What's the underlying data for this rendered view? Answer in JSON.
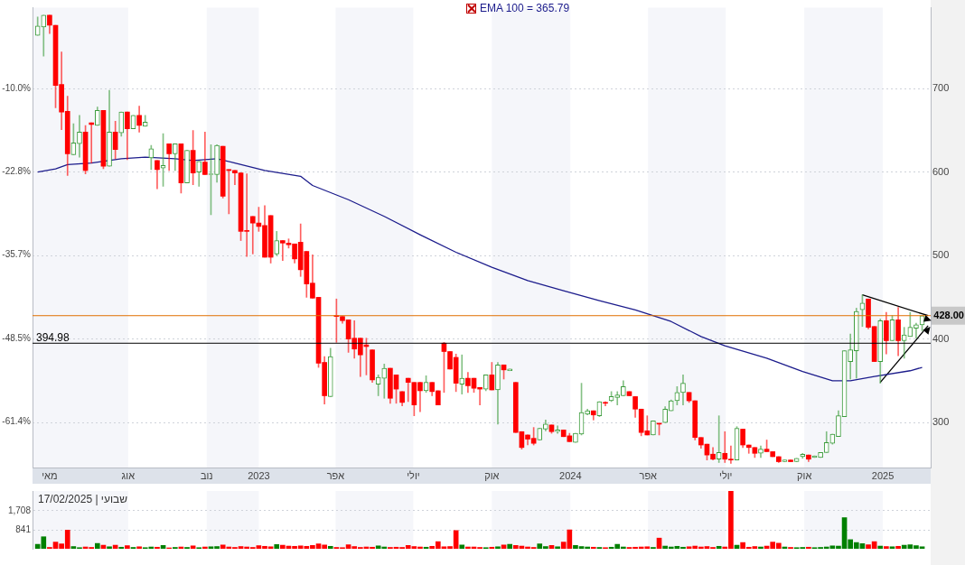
{
  "chart_data": [
    {
      "type": "candlestick",
      "x": [
        "2022-04-17",
        "2022-04-24",
        "2022-05-01",
        "2022-05-08",
        "2022-05-15",
        "2022-05-22",
        "2022-05-29",
        "2022-06-05",
        "2022-06-12",
        "2022-06-19",
        "2022-06-26",
        "2022-07-03",
        "2022-07-10",
        "2022-07-17",
        "2022-07-24",
        "2022-07-31",
        "2022-08-07",
        "2022-08-14",
        "2022-08-21",
        "2022-08-28",
        "2022-09-04",
        "2022-09-11",
        "2022-09-18",
        "2022-09-25",
        "2022-10-02",
        "2022-10-09",
        "2022-10-16",
        "2022-10-23",
        "2022-10-30",
        "2022-11-06",
        "2022-11-13",
        "2022-11-20",
        "2022-11-27",
        "2022-12-04",
        "2022-12-11",
        "2022-12-18",
        "2022-12-25",
        "2023-01-01",
        "2023-01-08",
        "2023-01-15",
        "2023-01-22",
        "2023-01-29",
        "2023-02-05",
        "2023-02-12",
        "2023-02-19",
        "2023-02-26",
        "2023-03-05",
        "2023-03-12",
        "2023-03-19",
        "2023-03-26",
        "2023-04-02",
        "2023-04-09",
        "2023-04-16",
        "2023-04-23",
        "2023-04-30",
        "2023-05-07",
        "2023-05-14",
        "2023-05-21",
        "2023-05-28",
        "2023-06-04",
        "2023-06-11",
        "2023-06-18",
        "2023-06-25",
        "2023-07-02",
        "2023-07-09",
        "2023-07-16",
        "2023-07-23",
        "2023-07-30",
        "2023-08-06",
        "2023-08-13",
        "2023-08-20",
        "2023-08-27",
        "2023-09-03",
        "2023-09-10",
        "2023-09-17",
        "2023-09-24",
        "2023-10-01",
        "2023-10-08",
        "2023-10-15",
        "2023-10-22",
        "2023-10-29",
        "2023-11-05",
        "2023-11-12",
        "2023-11-19",
        "2023-11-26",
        "2023-12-03",
        "2023-12-10",
        "2023-12-17",
        "2023-12-24",
        "2023-12-31",
        "2024-01-07",
        "2024-01-14",
        "2024-01-21",
        "2024-01-28",
        "2024-02-04",
        "2024-02-11",
        "2024-02-18",
        "2024-02-25",
        "2024-03-03",
        "2024-03-10",
        "2024-03-17",
        "2024-03-24",
        "2024-03-31",
        "2024-04-07",
        "2024-04-14",
        "2024-04-21",
        "2024-04-28",
        "2024-05-05",
        "2024-05-12",
        "2024-05-19",
        "2024-05-26",
        "2024-06-02",
        "2024-06-09",
        "2024-06-16",
        "2024-06-23",
        "2024-06-30",
        "2024-07-07",
        "2024-07-14",
        "2024-07-21",
        "2024-07-28",
        "2024-08-04",
        "2024-08-11",
        "2024-08-18",
        "2024-08-25",
        "2024-09-01",
        "2024-09-08",
        "2024-09-15",
        "2024-09-22",
        "2024-09-29",
        "2024-10-06",
        "2024-10-13",
        "2024-10-20",
        "2024-10-27",
        "2024-11-03",
        "2024-11-10",
        "2024-11-17",
        "2024-11-24",
        "2024-12-01",
        "2024-12-08",
        "2024-12-15",
        "2024-12-22",
        "2024-12-29",
        "2025-01-05",
        "2025-01-12",
        "2025-01-19",
        "2025-01-26",
        "2025-02-02",
        "2025-02-09",
        "2025-02-16"
      ],
      "ohlc": [
        [
          764,
          786,
          764,
          775
        ],
        [
          774,
          788,
          739,
          788
        ],
        [
          788,
          788,
          766,
          776
        ],
        [
          776,
          776,
          677,
          704
        ],
        [
          705,
          744,
          651,
          672
        ],
        [
          673,
          691,
          596,
          622
        ],
        [
          621,
          658,
          621,
          635
        ],
        [
          634,
          668,
          618,
          648
        ],
        [
          648,
          656,
          598,
          602
        ],
        [
          659,
          659,
          611,
          657
        ],
        [
          656,
          678,
          656,
          674
        ],
        [
          674,
          674,
          604,
          607
        ],
        [
          607,
          698,
          607,
          648
        ],
        [
          648,
          661,
          616,
          627
        ],
        [
          647,
          672,
          643,
          672
        ],
        [
          672,
          672,
          615,
          652
        ],
        [
          652,
          668,
          652,
          668
        ],
        [
          668,
          679,
          648,
          656
        ],
        [
          655,
          668,
          655,
          660
        ],
        [
          617,
          632,
          603,
          628
        ],
        [
          614,
          614,
          580,
          603
        ],
        [
          605,
          646,
          583,
          608
        ],
        [
          634,
          634,
          602,
          622
        ],
        [
          622,
          634,
          602,
          634
        ],
        [
          634,
          634,
          575,
          587
        ],
        [
          587,
          626,
          587,
          626
        ],
        [
          626,
          650,
          585,
          599
        ],
        [
          600,
          613,
          583,
          613
        ],
        [
          612,
          648,
          597,
          597
        ],
        [
          597,
          633,
          549,
          598
        ],
        [
          597,
          633,
          588,
          632
        ],
        [
          631,
          631,
          569,
          571
        ],
        [
          603,
          603,
          550,
          602
        ],
        [
          602,
          602,
          585,
          599
        ],
        [
          599,
          599,
          518,
          529
        ],
        [
          530,
          598,
          499,
          529
        ],
        [
          547,
          547,
          502,
          539
        ],
        [
          539,
          558,
          529,
          535
        ],
        [
          536,
          560,
          498,
          498
        ],
        [
          548,
          548,
          491,
          498
        ],
        [
          502,
          529,
          500,
          518
        ],
        [
          518,
          518,
          494,
          515
        ],
        [
          515,
          520,
          509,
          513
        ],
        [
          514,
          514,
          491,
          496
        ],
        [
          516,
          538,
          475,
          483
        ],
        [
          505,
          505,
          450,
          466
        ],
        [
          467,
          501,
          449,
          449
        ],
        [
          450,
          450,
          366,
          371
        ],
        [
          372,
          379,
          322,
          332
        ],
        [
          331,
          389,
          331,
          379
        ],
        [
          428,
          448,
          396,
          427
        ],
        [
          427,
          427,
          419,
          422
        ],
        [
          423,
          423,
          384,
          400
        ],
        [
          401,
          422,
          377,
          388
        ],
        [
          401,
          401,
          355,
          381
        ],
        [
          393,
          401,
          357,
          391
        ],
        [
          387,
          387,
          348,
          351
        ],
        [
          346,
          357,
          332,
          354
        ],
        [
          353,
          370,
          329,
          365
        ],
        [
          365,
          365,
          323,
          329
        ],
        [
          357,
          357,
          323,
          340
        ],
        [
          337,
          337,
          320,
          324
        ],
        [
          353,
          353,
          325,
          348
        ],
        [
          348,
          348,
          308,
          321
        ],
        [
          348,
          348,
          313,
          338
        ],
        [
          338,
          356,
          336,
          348
        ],
        [
          348,
          348,
          332,
          337
        ],
        [
          338,
          338,
          321,
          321
        ],
        [
          395,
          396,
          336,
          385
        ],
        [
          385,
          385,
          364,
          364
        ],
        [
          378,
          382,
          337,
          347
        ],
        [
          346,
          381,
          334,
          353
        ],
        [
          353,
          360,
          336,
          344
        ],
        [
          353,
          353,
          336,
          341
        ],
        [
          342,
          342,
          321,
          340
        ],
        [
          340,
          357,
          338,
          357
        ],
        [
          357,
          372,
          339,
          339
        ],
        [
          339,
          372,
          298,
          369
        ],
        [
          369,
          369,
          352,
          363
        ],
        [
          362,
          364,
          362,
          364
        ],
        [
          348,
          348,
          288,
          288
        ],
        [
          289,
          289,
          268,
          270
        ],
        [
          285,
          285,
          273,
          280
        ],
        [
          281,
          294,
          273,
          275
        ],
        [
          279,
          293,
          279,
          293
        ],
        [
          292,
          303,
          290,
          298
        ],
        [
          297,
          297,
          287,
          289
        ],
        [
          289,
          296,
          287,
          291
        ],
        [
          291,
          291,
          283,
          283
        ],
        [
          284,
          287,
          277,
          277
        ],
        [
          276,
          287,
          276,
          287
        ],
        [
          286,
          347,
          285,
          312
        ],
        [
          310,
          316,
          309,
          314
        ],
        [
          314,
          314,
          303,
          309
        ],
        [
          308,
          325,
          307,
          325
        ],
        [
          324,
          325,
          320,
          323
        ],
        [
          326,
          337,
          325,
          331
        ],
        [
          330,
          337,
          321,
          333
        ],
        [
          332,
          350,
          332,
          343
        ],
        [
          337,
          337,
          332,
          332
        ],
        [
          331,
          331,
          306,
          316
        ],
        [
          316,
          316,
          284,
          288
        ],
        [
          290,
          308,
          285,
          285
        ],
        [
          285,
          302,
          285,
          302
        ],
        [
          299,
          299,
          285,
          298
        ],
        [
          300,
          319,
          300,
          316
        ],
        [
          314,
          327,
          314,
          326
        ],
        [
          326,
          343,
          321,
          336
        ],
        [
          336,
          357,
          321,
          347
        ],
        [
          336,
          336,
          324,
          326
        ],
        [
          326,
          326,
          279,
          282
        ],
        [
          282,
          282,
          269,
          273
        ],
        [
          274,
          274,
          255,
          261
        ],
        [
          262,
          270,
          255,
          256
        ],
        [
          256,
          308,
          252,
          264
        ],
        [
          263,
          289,
          252,
          256
        ],
        [
          256,
          272,
          251,
          255
        ],
        [
          255,
          295,
          255,
          293
        ],
        [
          292,
          292,
          270,
          273
        ],
        [
          273,
          273,
          263,
          270
        ],
        [
          270,
          270,
          258,
          263
        ],
        [
          263,
          272,
          258,
          268
        ],
        [
          268,
          279,
          265,
          265
        ],
        [
          265,
          265,
          259,
          259
        ],
        [
          259,
          259,
          252,
          253
        ],
        [
          253,
          255,
          253,
          255
        ],
        [
          255,
          255,
          253,
          253
        ],
        [
          253,
          257,
          253,
          257
        ],
        [
          259,
          263,
          257,
          262
        ],
        [
          261,
          261,
          253,
          256
        ],
        [
          258,
          260,
          258,
          260
        ],
        [
          258,
          264,
          258,
          264
        ],
        [
          264,
          289,
          264,
          276
        ],
        [
          275,
          286,
          274,
          286
        ],
        [
          283,
          314,
          283,
          308
        ],
        [
          307,
          386,
          307,
          386
        ],
        [
          373,
          406,
          352,
          387
        ],
        [
          386,
          437,
          353,
          433
        ],
        [
          435,
          453,
          415,
          443
        ],
        [
          448,
          448,
          412,
          414
        ],
        [
          415,
          415,
          373,
          373
        ],
        [
          373,
          424,
          347,
          422
        ],
        [
          422,
          432,
          382,
          398
        ],
        [
          398,
          428,
          398,
          423
        ],
        [
          423,
          438,
          380,
          398
        ],
        [
          398,
          414,
          377,
          405
        ],
        [
          403,
          432,
          403,
          414
        ],
        [
          413,
          419,
          401,
          417
        ],
        [
          417,
          428,
          410,
          428
        ]
      ],
      "colors": [
        "#3c9c3c",
        "#3c9c3c",
        "#ff0000",
        "#ff0000",
        "#ff0000",
        "#ff0000",
        "#3c9c3c",
        "#3c9c3c",
        "#ff0000",
        "#ff0000",
        "#3c9c3c",
        "#ff0000",
        "#3c9c3c",
        "#ff0000",
        "#3c9c3c",
        "#ff0000",
        "#3c9c3c",
        "#ff0000",
        "#3c9c3c",
        "#3c9c3c",
        "#ff0000",
        "#3c9c3c",
        "#ff0000",
        "#3c9c3c",
        "#ff0000",
        "#3c9c3c",
        "#ff0000",
        "#3c9c3c",
        "#ff0000",
        "#3c9c3c",
        "#3c9c3c",
        "#ff0000",
        "#ff0000",
        "#ff0000",
        "#ff0000",
        "#ff0000",
        "#ff0000",
        "#ff0000",
        "#ff0000",
        "#ff0000",
        "#3c9c3c",
        "#ff0000",
        "#ff0000",
        "#ff0000",
        "#ff0000",
        "#ff0000",
        "#ff0000",
        "#ff0000",
        "#ff0000",
        "#3c9c3c",
        "#ff0000",
        "#ff0000",
        "#ff0000",
        "#ff0000",
        "#ff0000",
        "#ff0000",
        "#ff0000",
        "#3c9c3c",
        "#3c9c3c",
        "#ff0000",
        "#ff0000",
        "#ff0000",
        "#ff0000",
        "#ff0000",
        "#ff0000",
        "#3c9c3c",
        "#ff0000",
        "#ff0000",
        "#ff0000",
        "#ff0000",
        "#ff0000",
        "#3c9c3c",
        "#ff0000",
        "#ff0000",
        "#ff0000",
        "#3c9c3c",
        "#ff0000",
        "#3c9c3c",
        "#ff0000",
        "#3c9c3c",
        "#ff0000",
        "#ff0000",
        "#ff0000",
        "#ff0000",
        "#3c9c3c",
        "#3c9c3c",
        "#ff0000",
        "#3c9c3c",
        "#ff0000",
        "#ff0000",
        "#3c9c3c",
        "#3c9c3c",
        "#3c9c3c",
        "#ff0000",
        "#3c9c3c",
        "#ff0000",
        "#3c9c3c",
        "#3c9c3c",
        "#3c9c3c",
        "#ff0000",
        "#ff0000",
        "#ff0000",
        "#ff0000",
        "#3c9c3c",
        "#ff0000",
        "#3c9c3c",
        "#3c9c3c",
        "#3c9c3c",
        "#3c9c3c",
        "#ff0000",
        "#ff0000",
        "#ff0000",
        "#ff0000",
        "#ff0000",
        "#3c9c3c",
        "#ff0000",
        "#ff0000",
        "#3c9c3c",
        "#ff0000",
        "#ff0000",
        "#ff0000",
        "#3c9c3c",
        "#ff0000",
        "#ff0000",
        "#ff0000",
        "#3c9c3c",
        "#ff0000",
        "#3c9c3c",
        "#3c9c3c",
        "#ff0000",
        "#3c9c3c",
        "#3c9c3c",
        "#3c9c3c",
        "#3c9c3c",
        "#3c9c3c",
        "#3c9c3c",
        "#3c9c3c",
        "#3c9c3c",
        "#3c9c3c",
        "#ff0000",
        "#ff0000",
        "#3c9c3c",
        "#ff0000",
        "#3c9c3c",
        "#ff0000",
        "#3c9c3c",
        "#3c9c3c",
        "#3c9c3c",
        "#3c9c3c"
      ],
      "series": [
        {
          "type": "line",
          "name": "EMA 100 = 365.79",
          "color": "#1c1c8c",
          "x": [
            "2022-04-17",
            "2022-05-08",
            "2022-05-22",
            "2022-06-19",
            "2022-07-24",
            "2022-08-21",
            "2022-09-25",
            "2022-10-16",
            "2022-11-13",
            "2022-12-04",
            "2023-01-08",
            "2023-02-19",
            "2023-03-05",
            "2023-04-16",
            "2023-05-28",
            "2023-07-09",
            "2023-08-20",
            "2023-10-01",
            "2023-11-12",
            "2023-12-24",
            "2024-02-04",
            "2024-03-17",
            "2024-04-28",
            "2024-06-02",
            "2024-06-30",
            "2024-08-18",
            "2024-09-29",
            "2024-11-03",
            "2024-11-24",
            "2024-12-22",
            "2025-02-02",
            "2025-02-16"
          ],
          "values": [
            600,
            604,
            609,
            611,
            616,
            618,
            616,
            614,
            616,
            611,
            602,
            595,
            584,
            567,
            547,
            525,
            504,
            486,
            470,
            458,
            446,
            435,
            421,
            403,
            392,
            377,
            361,
            350,
            350,
            355,
            362,
            366
          ]
        },
        {
          "type": "line",
          "color": "#000000",
          "x": [
            "2024-12-08",
            "2025-02-23"
          ],
          "values": [
            453,
            428
          ]
        },
        {
          "type": "line",
          "color": "#000000",
          "x": [
            "2024-12-29",
            "2025-02-23"
          ],
          "values": [
            348,
            416
          ]
        }
      ],
      "ref_lines": [
        {
          "axis": "y",
          "value": 428,
          "label": "428.00",
          "color": "#e07000"
        },
        {
          "axis": "y",
          "value": 394.98,
          "label": "394.98",
          "color": "#000000"
        }
      ],
      "xlim": [
        "2022-04-11",
        "2025-02-26"
      ],
      "xticks": [
        {
          "value": "2022-05-01",
          "label": "מאי"
        },
        {
          "value": "2022-08-01",
          "label": "אוג"
        },
        {
          "value": "2022-11-01",
          "label": "נוב"
        },
        {
          "value": "2023-01-01",
          "label": "2023"
        },
        {
          "value": "2023-04-01",
          "label": "אפר"
        },
        {
          "value": "2023-07-01",
          "label": "יולי"
        },
        {
          "value": "2023-10-01",
          "label": "אוק"
        },
        {
          "value": "2024-01-01",
          "label": "2024"
        },
        {
          "value": "2024-04-01",
          "label": "אפר"
        },
        {
          "value": "2024-07-01",
          "label": "יולי"
        },
        {
          "value": "2024-10-01",
          "label": "אוק"
        },
        {
          "value": "2025-01-01",
          "label": "2025"
        }
      ],
      "ylim": [
        246,
        797
      ],
      "yticks": [
        300,
        400,
        500,
        600,
        700
      ],
      "y2lim": [
        -68.4,
        2.4
      ],
      "y2ticks": [
        {
          "value": -61.4,
          "label": "-61.4%"
        },
        {
          "value": -48.5,
          "label": "-48.5%"
        },
        {
          "value": -35.7,
          "label": "-35.7%"
        },
        {
          "value": -22.8,
          "label": "-22.8%"
        },
        {
          "value": -10,
          "label": "-10.0%"
        }
      ],
      "grid": "y",
      "legend": "top"
    },
    {
      "type": "bar",
      "x": [
        "2022-04-17",
        "2022-04-24",
        "2022-05-01",
        "2022-05-08",
        "2022-05-15",
        "2022-05-22",
        "2022-05-29",
        "2022-06-05",
        "2022-06-12",
        "2022-06-19",
        "2022-06-26",
        "2022-07-03",
        "2022-07-10",
        "2022-07-17",
        "2022-07-24",
        "2022-07-31",
        "2022-08-07",
        "2022-08-14",
        "2022-08-21",
        "2022-08-28",
        "2022-09-04",
        "2022-09-11",
        "2022-09-18",
        "2022-09-25",
        "2022-10-02",
        "2022-10-09",
        "2022-10-16",
        "2022-10-23",
        "2022-10-30",
        "2022-11-06",
        "2022-11-13",
        "2022-11-20",
        "2022-11-27",
        "2022-12-04",
        "2022-12-11",
        "2022-12-18",
        "2022-12-25",
        "2023-01-01",
        "2023-01-08",
        "2023-01-15",
        "2023-01-22",
        "2023-01-29",
        "2023-02-05",
        "2023-02-12",
        "2023-02-19",
        "2023-02-26",
        "2023-03-05",
        "2023-03-12",
        "2023-03-19",
        "2023-03-26",
        "2023-04-02",
        "2023-04-09",
        "2023-04-16",
        "2023-04-23",
        "2023-04-30",
        "2023-05-07",
        "2023-05-14",
        "2023-05-21",
        "2023-05-28",
        "2023-06-04",
        "2023-06-11",
        "2023-06-18",
        "2023-06-25",
        "2023-07-02",
        "2023-07-09",
        "2023-07-16",
        "2023-07-23",
        "2023-07-30",
        "2023-08-06",
        "2023-08-13",
        "2023-08-20",
        "2023-08-27",
        "2023-09-03",
        "2023-09-10",
        "2023-09-17",
        "2023-09-24",
        "2023-10-01",
        "2023-10-08",
        "2023-10-15",
        "2023-10-22",
        "2023-10-29",
        "2023-11-05",
        "2023-11-12",
        "2023-11-19",
        "2023-11-26",
        "2023-12-03",
        "2023-12-10",
        "2023-12-17",
        "2023-12-24",
        "2023-12-31",
        "2024-01-07",
        "2024-01-14",
        "2024-01-21",
        "2024-01-28",
        "2024-02-04",
        "2024-02-11",
        "2024-02-18",
        "2024-02-25",
        "2024-03-03",
        "2024-03-10",
        "2024-03-17",
        "2024-03-24",
        "2024-03-31",
        "2024-04-07",
        "2024-04-14",
        "2024-04-21",
        "2024-04-28",
        "2024-05-05",
        "2024-05-12",
        "2024-05-19",
        "2024-05-26",
        "2024-06-02",
        "2024-06-09",
        "2024-06-16",
        "2024-06-23",
        "2024-06-30",
        "2024-07-07",
        "2024-07-14",
        "2024-07-21",
        "2024-07-28",
        "2024-08-04",
        "2024-08-11",
        "2024-08-18",
        "2024-08-25",
        "2024-09-01",
        "2024-09-08",
        "2024-09-15",
        "2024-09-22",
        "2024-09-29",
        "2024-10-06",
        "2024-10-13",
        "2024-10-20",
        "2024-10-27",
        "2024-11-03",
        "2024-11-10",
        "2024-11-17",
        "2024-11-24",
        "2024-12-01",
        "2024-12-08",
        "2024-12-15",
        "2024-12-22",
        "2024-12-29",
        "2025-01-05",
        "2025-01-12",
        "2025-01-19",
        "2025-01-26",
        "2025-02-02",
        "2025-02-09",
        "2025-02-16"
      ],
      "values": [
        200,
        540,
        60,
        300,
        220,
        840,
        100,
        50,
        80,
        60,
        240,
        160,
        90,
        160,
        70,
        140,
        60,
        90,
        50,
        80,
        70,
        150,
        40,
        60,
        80,
        60,
        130,
        50,
        80,
        90,
        100,
        170,
        80,
        60,
        100,
        80,
        60,
        140,
        110,
        90,
        190,
        160,
        120,
        110,
        130,
        110,
        150,
        220,
        170,
        110,
        60,
        50,
        180,
        100,
        60,
        80,
        70,
        130,
        80,
        60,
        70,
        60,
        150,
        100,
        80,
        70,
        110,
        320,
        90,
        100,
        820,
        170,
        80,
        80,
        60,
        50,
        70,
        90,
        170,
        200,
        150,
        120,
        80,
        60,
        220,
        100,
        150,
        90,
        300,
        850,
        150,
        100,
        80,
        70,
        60,
        50,
        70,
        200,
        80,
        60,
        70,
        80,
        90,
        60,
        480,
        120,
        80,
        110,
        70,
        90,
        120,
        80,
        100,
        60,
        110,
        80,
        2600,
        160,
        280,
        70,
        100,
        80,
        120,
        300,
        250,
        80,
        60,
        50,
        60,
        70,
        50,
        60,
        80,
        130,
        120,
        1400,
        410,
        280,
        230,
        180,
        320,
        120,
        100,
        90,
        110,
        160,
        180,
        140,
        90
      ],
      "colors": [
        "#008000",
        "#008000",
        "#ff0000",
        "#ff0000",
        "#ff0000",
        "#ff0000",
        "#008000",
        "#008000",
        "#ff0000",
        "#ff0000",
        "#008000",
        "#ff0000",
        "#008000",
        "#ff0000",
        "#008000",
        "#ff0000",
        "#008000",
        "#ff0000",
        "#008000",
        "#008000",
        "#ff0000",
        "#008000",
        "#ff0000",
        "#008000",
        "#ff0000",
        "#008000",
        "#ff0000",
        "#008000",
        "#ff0000",
        "#008000",
        "#008000",
        "#ff0000",
        "#ff0000",
        "#ff0000",
        "#ff0000",
        "#ff0000",
        "#ff0000",
        "#ff0000",
        "#ff0000",
        "#ff0000",
        "#008000",
        "#ff0000",
        "#ff0000",
        "#ff0000",
        "#ff0000",
        "#ff0000",
        "#ff0000",
        "#ff0000",
        "#ff0000",
        "#008000",
        "#ff0000",
        "#ff0000",
        "#ff0000",
        "#ff0000",
        "#ff0000",
        "#ff0000",
        "#ff0000",
        "#008000",
        "#008000",
        "#ff0000",
        "#ff0000",
        "#ff0000",
        "#ff0000",
        "#ff0000",
        "#ff0000",
        "#008000",
        "#ff0000",
        "#ff0000",
        "#ff0000",
        "#ff0000",
        "#ff0000",
        "#008000",
        "#ff0000",
        "#ff0000",
        "#ff0000",
        "#008000",
        "#ff0000",
        "#008000",
        "#ff0000",
        "#008000",
        "#ff0000",
        "#ff0000",
        "#ff0000",
        "#ff0000",
        "#008000",
        "#008000",
        "#ff0000",
        "#008000",
        "#ff0000",
        "#ff0000",
        "#008000",
        "#008000",
        "#008000",
        "#ff0000",
        "#008000",
        "#ff0000",
        "#008000",
        "#008000",
        "#008000",
        "#ff0000",
        "#ff0000",
        "#ff0000",
        "#ff0000",
        "#008000",
        "#ff0000",
        "#008000",
        "#008000",
        "#008000",
        "#008000",
        "#ff0000",
        "#ff0000",
        "#ff0000",
        "#ff0000",
        "#ff0000",
        "#008000",
        "#ff0000",
        "#ff0000",
        "#008000",
        "#ff0000",
        "#ff0000",
        "#ff0000",
        "#008000",
        "#ff0000",
        "#ff0000",
        "#ff0000",
        "#008000",
        "#ff0000",
        "#008000",
        "#008000",
        "#ff0000",
        "#008000",
        "#008000",
        "#008000",
        "#008000",
        "#008000",
        "#008000",
        "#008000",
        "#008000",
        "#008000",
        "#ff0000",
        "#ff0000",
        "#008000",
        "#ff0000",
        "#008000",
        "#ff0000",
        "#008000",
        "#008000",
        "#008000",
        "#008000"
      ],
      "xlim": [
        "2022-04-11",
        "2025-02-26"
      ],
      "ylim": [
        0,
        2600
      ],
      "yticks": [
        {
          "value": 841,
          "label": "841"
        },
        {
          "value": 1708,
          "label": "1,708"
        }
      ],
      "xticks": [
        {
          "value": "2022-05-01",
          "label": null
        },
        {
          "value": "2022-08-01",
          "label": null
        },
        {
          "value": "2022-11-01",
          "label": null
        },
        {
          "value": "2023-01-01",
          "label": null
        },
        {
          "value": "2023-04-01",
          "label": null
        },
        {
          "value": "2023-07-01",
          "label": null
        },
        {
          "value": "2023-10-01",
          "label": null
        },
        {
          "value": "2024-01-01",
          "label": null
        },
        {
          "value": "2024-04-01",
          "label": null
        },
        {
          "value": "2024-07-01",
          "label": null
        },
        {
          "value": "2024-10-01",
          "label": null
        },
        {
          "value": "2025-01-01",
          "label": null
        }
      ],
      "grid": "y",
      "tick_labels": "y",
      "annotations": [
        "שבועי | 17/02/2025"
      ]
    }
  ]
}
